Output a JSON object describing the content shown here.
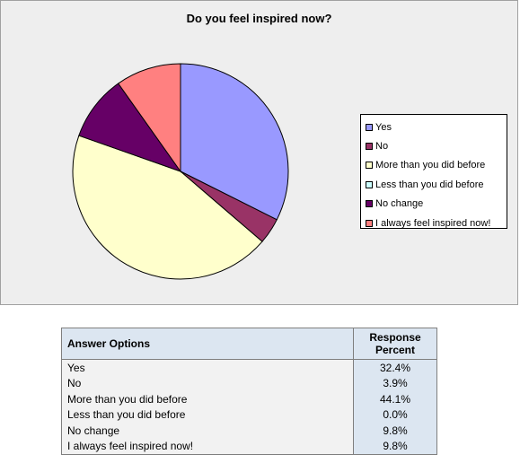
{
  "chart_data": {
    "type": "pie",
    "title": "Do you feel inspired now?",
    "categories": [
      "Yes",
      "No",
      "More than you did before",
      "Less than you did before",
      "No change",
      "I always feel inspired now!"
    ],
    "values": [
      32.4,
      3.9,
      44.1,
      0.0,
      9.8,
      9.8
    ],
    "colors": [
      "#9999ff",
      "#993366",
      "#ffffcc",
      "#ccffff",
      "#660066",
      "#ff8080"
    ],
    "legend_position": "right"
  },
  "table": {
    "header_option": "Answer Options",
    "header_percent": "Response Percent",
    "rows": [
      {
        "option": "Yes",
        "percent": "32.4%"
      },
      {
        "option": "No",
        "percent": "3.9%"
      },
      {
        "option": "More than you did before",
        "percent": "44.1%"
      },
      {
        "option": "Less than you did before",
        "percent": "0.0%"
      },
      {
        "option": "No change",
        "percent": "9.8%"
      },
      {
        "option": "I always feel inspired now!",
        "percent": "9.8%"
      }
    ]
  }
}
